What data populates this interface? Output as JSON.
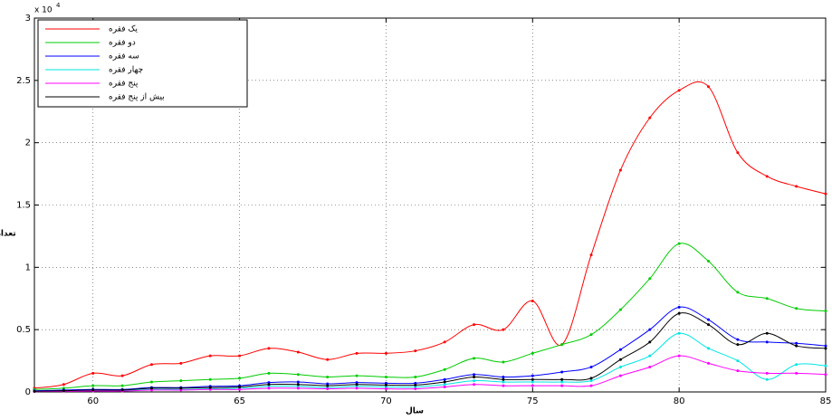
{
  "chart_data": {
    "type": "line",
    "multiplier": "x 10",
    "multiplier_exponent": "4",
    "xlabel": "سال",
    "ylabel": "تعداد",
    "x": [
      58,
      59,
      60,
      61,
      62,
      63,
      64,
      65,
      66,
      67,
      68,
      69,
      70,
      71,
      72,
      73,
      74,
      75,
      76,
      77,
      78,
      79,
      80,
      81,
      82,
      83,
      84,
      85
    ],
    "xlim": [
      58,
      85
    ],
    "xticks": [
      60,
      65,
      70,
      75,
      80,
      85
    ],
    "ylim": [
      0,
      30000
    ],
    "yticks": [
      0,
      {
        "value": 5000,
        "label": "0.5"
      },
      {
        "value": 10000,
        "label": "1"
      },
      {
        "value": 15000,
        "label": "1.5"
      },
      {
        "value": 20000,
        "label": "2"
      },
      {
        "value": 25000,
        "label": "2.5"
      },
      {
        "value": 30000,
        "label": "3"
      }
    ],
    "grid": true,
    "legend": "upper left",
    "series": [
      {
        "name": "یک فقره",
        "color": "#ff0000",
        "values": [
          300,
          600,
          1500,
          1300,
          2200,
          2300,
          2900,
          2900,
          3500,
          3200,
          2600,
          3100,
          3100,
          3300,
          4000,
          5400,
          5000,
          7300,
          3800,
          11000,
          17800,
          22000,
          24200,
          24500,
          19200,
          17300,
          16500,
          15900
        ]
      },
      {
        "name": "دو فقره",
        "color": "#00cc00",
        "values": [
          200,
          300,
          500,
          500,
          800,
          900,
          1000,
          1100,
          1500,
          1400,
          1200,
          1300,
          1200,
          1200,
          1800,
          2700,
          2400,
          3100,
          3800,
          4600,
          6600,
          9100,
          11900,
          10500,
          8000,
          7500,
          6700,
          6500
        ]
      },
      {
        "name": "سه فقره",
        "color": "#0000ff",
        "values": [
          100,
          150,
          200,
          200,
          350,
          350,
          450,
          500,
          750,
          800,
          650,
          750,
          700,
          700,
          1000,
          1400,
          1200,
          1300,
          1600,
          2000,
          3400,
          5000,
          6800,
          5800,
          4200,
          4000,
          3900,
          3700
        ]
      },
      {
        "name": "چهار فقره",
        "color": "#00e5e5",
        "values": [
          50,
          80,
          100,
          100,
          200,
          200,
          250,
          300,
          450,
          450,
          350,
          450,
          400,
          400,
          600,
          900,
          800,
          800,
          800,
          900,
          2000,
          2900,
          4700,
          3500,
          2500,
          1000,
          2200,
          2100
        ]
      },
      {
        "name": "پنج فقره",
        "color": "#ff00ff",
        "values": [
          30,
          50,
          70,
          70,
          150,
          150,
          200,
          200,
          300,
          300,
          250,
          300,
          250,
          250,
          400,
          600,
          500,
          500,
          500,
          500,
          1300,
          2000,
          2900,
          2300,
          1700,
          1500,
          1500,
          1400
        ]
      },
      {
        "name": "بیش از پنج فقره",
        "color": "#000000",
        "values": [
          50,
          100,
          150,
          150,
          300,
          300,
          350,
          400,
          600,
          600,
          500,
          600,
          550,
          550,
          800,
          1200,
          1000,
          1000,
          1000,
          1100,
          2600,
          4000,
          6300,
          5400,
          3800,
          4700,
          3700,
          3500
        ]
      }
    ]
  }
}
